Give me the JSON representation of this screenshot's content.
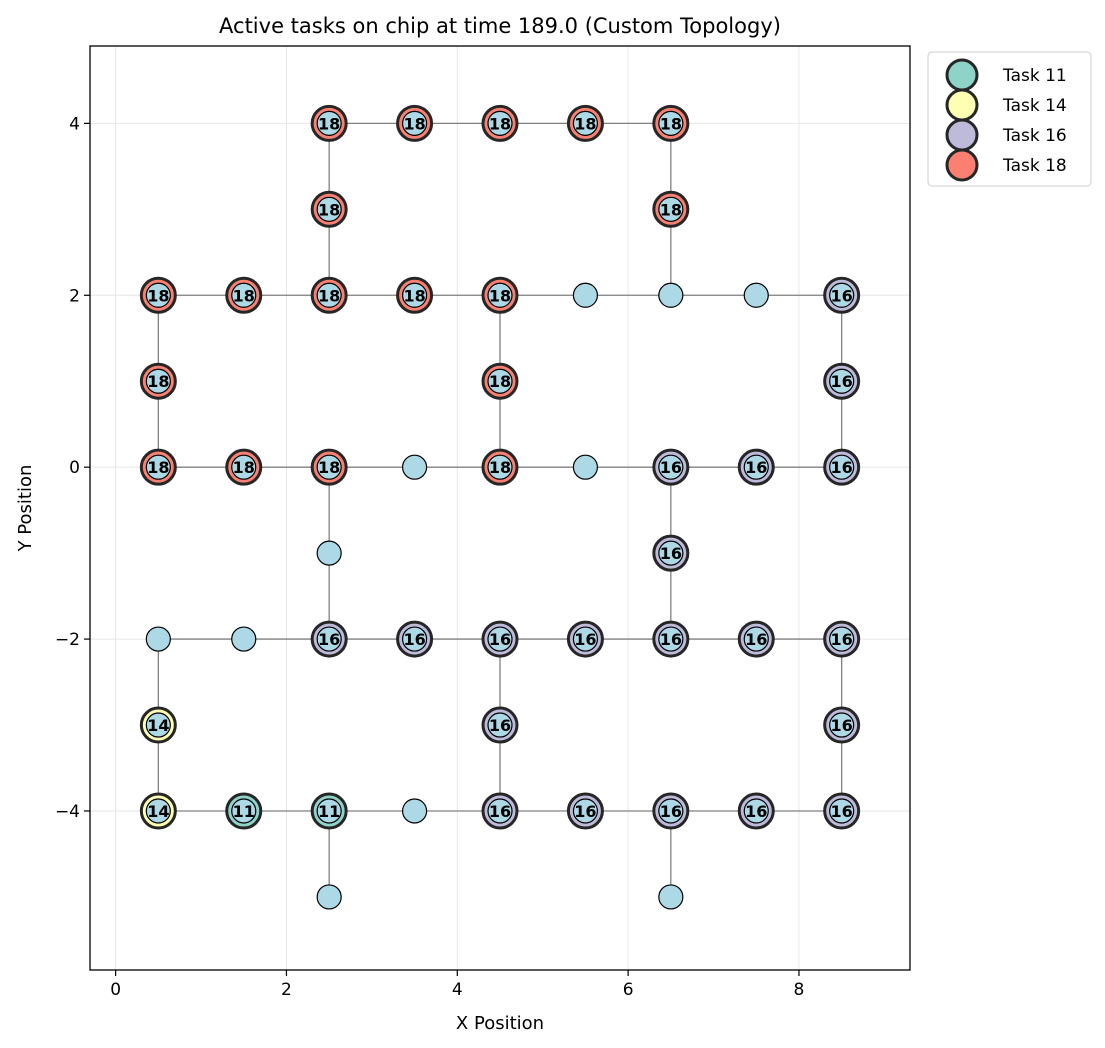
{
  "chart_data": {
    "type": "scatter",
    "title": "Active tasks on chip at time 189.0 (Custom Topology)",
    "xlabel": "X Position",
    "ylabel": "Y Position",
    "xlim": [
      -0.3,
      9.3
    ],
    "ylim": [
      -5.85,
      4.9
    ],
    "xticks": [
      0,
      2,
      4,
      6,
      8
    ],
    "yticks": [
      4,
      2,
      0,
      -2,
      -4
    ],
    "xtick_labels": [
      "0",
      "2",
      "4",
      "6",
      "8"
    ],
    "ytick_labels": [
      "4",
      "2",
      "0",
      "−2",
      "−4"
    ],
    "grid": true,
    "legend_position": "outside-top-right",
    "node_color": "#add8e6",
    "edge_color": "#808080",
    "legend": [
      {
        "name": "Task 11",
        "task": 11,
        "color": "#8dd3c7"
      },
      {
        "name": "Task 14",
        "task": 14,
        "color": "#ffffb3"
      },
      {
        "name": "Task 16",
        "task": 16,
        "color": "#bebada"
      },
      {
        "name": "Task 18",
        "task": 18,
        "color": "#fb8072"
      }
    ],
    "nodes": [
      {
        "x": 2.5,
        "y": 4,
        "task": 18
      },
      {
        "x": 3.5,
        "y": 4,
        "task": 18
      },
      {
        "x": 4.5,
        "y": 4,
        "task": 18
      },
      {
        "x": 5.5,
        "y": 4,
        "task": 18
      },
      {
        "x": 6.5,
        "y": 4,
        "task": 18
      },
      {
        "x": 2.5,
        "y": 3,
        "task": 18
      },
      {
        "x": 6.5,
        "y": 3,
        "task": 18
      },
      {
        "x": 0.5,
        "y": 2,
        "task": 18
      },
      {
        "x": 1.5,
        "y": 2,
        "task": 18
      },
      {
        "x": 2.5,
        "y": 2,
        "task": 18
      },
      {
        "x": 3.5,
        "y": 2,
        "task": 18
      },
      {
        "x": 4.5,
        "y": 2,
        "task": 18
      },
      {
        "x": 5.5,
        "y": 2,
        "task": null
      },
      {
        "x": 6.5,
        "y": 2,
        "task": null
      },
      {
        "x": 7.5,
        "y": 2,
        "task": null
      },
      {
        "x": 8.5,
        "y": 2,
        "task": 16
      },
      {
        "x": 0.5,
        "y": 1,
        "task": 18
      },
      {
        "x": 4.5,
        "y": 1,
        "task": 18
      },
      {
        "x": 8.5,
        "y": 1,
        "task": 16
      },
      {
        "x": 0.5,
        "y": 0,
        "task": 18
      },
      {
        "x": 1.5,
        "y": 0,
        "task": 18
      },
      {
        "x": 2.5,
        "y": 0,
        "task": 18
      },
      {
        "x": 3.5,
        "y": 0,
        "task": null
      },
      {
        "x": 4.5,
        "y": 0,
        "task": 18
      },
      {
        "x": 5.5,
        "y": 0,
        "task": null
      },
      {
        "x": 6.5,
        "y": 0,
        "task": 16
      },
      {
        "x": 7.5,
        "y": 0,
        "task": 16
      },
      {
        "x": 8.5,
        "y": 0,
        "task": 16
      },
      {
        "x": 2.5,
        "y": -1,
        "task": null
      },
      {
        "x": 6.5,
        "y": -1,
        "task": 16
      },
      {
        "x": 0.5,
        "y": -2,
        "task": null
      },
      {
        "x": 1.5,
        "y": -2,
        "task": null
      },
      {
        "x": 2.5,
        "y": -2,
        "task": 16
      },
      {
        "x": 3.5,
        "y": -2,
        "task": 16
      },
      {
        "x": 4.5,
        "y": -2,
        "task": 16
      },
      {
        "x": 5.5,
        "y": -2,
        "task": 16
      },
      {
        "x": 6.5,
        "y": -2,
        "task": 16
      },
      {
        "x": 7.5,
        "y": -2,
        "task": 16
      },
      {
        "x": 8.5,
        "y": -2,
        "task": 16
      },
      {
        "x": 0.5,
        "y": -3,
        "task": 14
      },
      {
        "x": 4.5,
        "y": -3,
        "task": 16
      },
      {
        "x": 8.5,
        "y": -3,
        "task": 16
      },
      {
        "x": 0.5,
        "y": -4,
        "task": 14
      },
      {
        "x": 1.5,
        "y": -4,
        "task": 11
      },
      {
        "x": 2.5,
        "y": -4,
        "task": 11
      },
      {
        "x": 3.5,
        "y": -4,
        "task": null
      },
      {
        "x": 4.5,
        "y": -4,
        "task": 16
      },
      {
        "x": 5.5,
        "y": -4,
        "task": 16
      },
      {
        "x": 6.5,
        "y": -4,
        "task": 16
      },
      {
        "x": 7.5,
        "y": -4,
        "task": 16
      },
      {
        "x": 8.5,
        "y": -4,
        "task": 16
      },
      {
        "x": 2.5,
        "y": -5,
        "task": null
      },
      {
        "x": 6.5,
        "y": -5,
        "task": null
      }
    ],
    "edges": [
      [
        [
          2.5,
          4
        ],
        [
          6.5,
          4
        ]
      ],
      [
        [
          2.5,
          4
        ],
        [
          2.5,
          2
        ]
      ],
      [
        [
          6.5,
          4
        ],
        [
          6.5,
          2
        ]
      ],
      [
        [
          0.5,
          2
        ],
        [
          8.5,
          2
        ]
      ],
      [
        [
          0.5,
          2
        ],
        [
          0.5,
          0
        ]
      ],
      [
        [
          4.5,
          2
        ],
        [
          4.5,
          0
        ]
      ],
      [
        [
          8.5,
          2
        ],
        [
          8.5,
          0
        ]
      ],
      [
        [
          0.5,
          0
        ],
        [
          8.5,
          0
        ]
      ],
      [
        [
          2.5,
          0
        ],
        [
          2.5,
          -2
        ]
      ],
      [
        [
          6.5,
          0
        ],
        [
          6.5,
          -2
        ]
      ],
      [
        [
          0.5,
          -2
        ],
        [
          8.5,
          -2
        ]
      ],
      [
        [
          0.5,
          -2
        ],
        [
          0.5,
          -4
        ]
      ],
      [
        [
          4.5,
          -2
        ],
        [
          4.5,
          -4
        ]
      ],
      [
        [
          8.5,
          -2
        ],
        [
          8.5,
          -4
        ]
      ],
      [
        [
          0.5,
          -4
        ],
        [
          8.5,
          -4
        ]
      ],
      [
        [
          2.5,
          -4
        ],
        [
          2.5,
          -5
        ]
      ],
      [
        [
          6.5,
          -4
        ],
        [
          6.5,
          -5
        ]
      ]
    ]
  }
}
